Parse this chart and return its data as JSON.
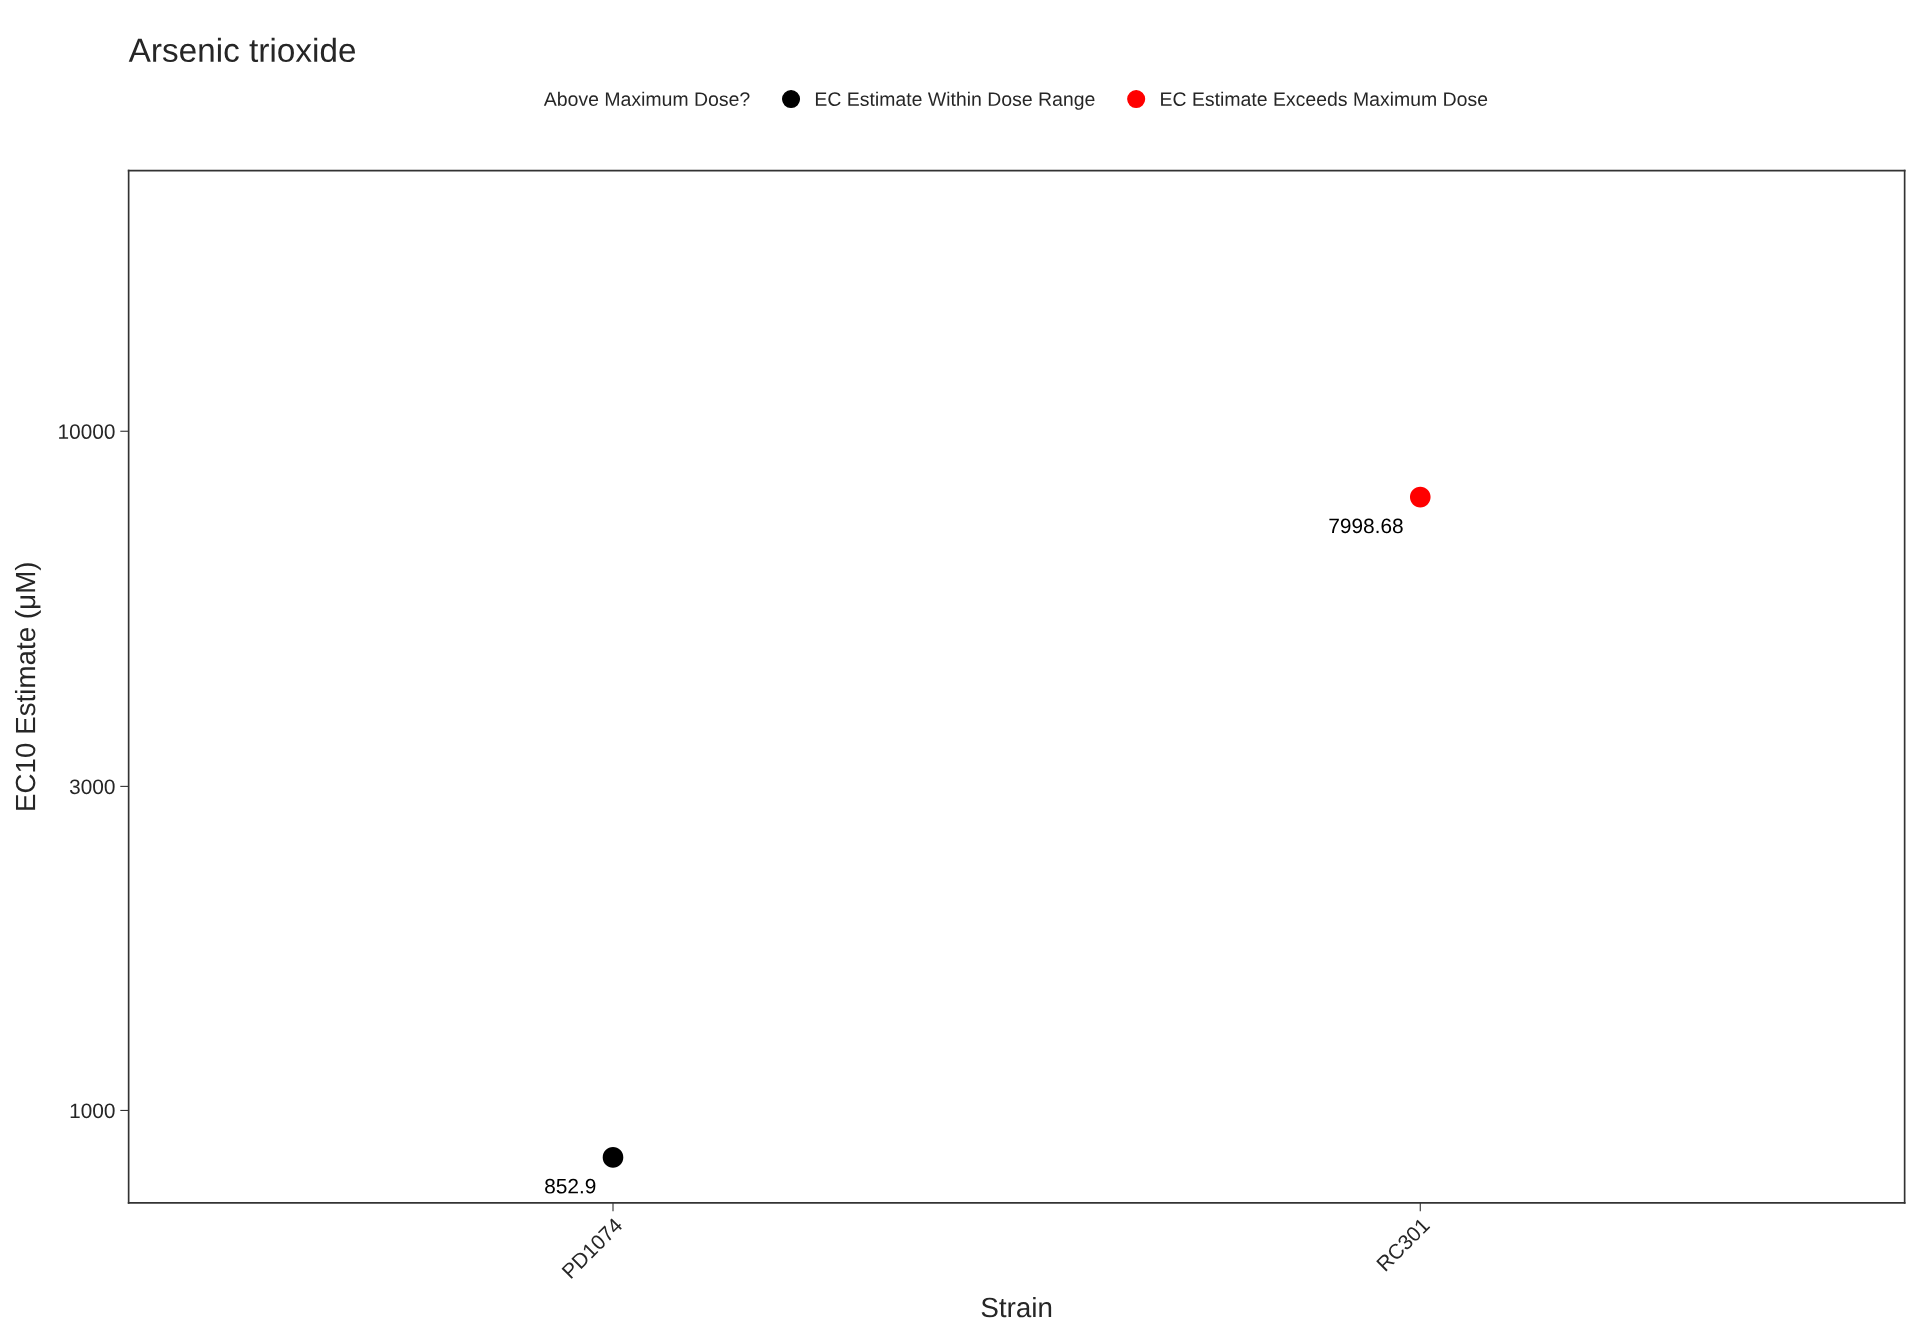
{
  "chart_data": {
    "type": "scatter",
    "title": "Arsenic trioxide",
    "xlabel": "Strain",
    "ylabel": "EC10 Estimate (μM)",
    "legend_title": "Above Maximum Dose?",
    "categories": [
      "PD1074",
      "RC301"
    ],
    "series": [
      {
        "name": "EC Estimate Within Dose Range",
        "color": "#000000",
        "values": [
          852.9,
          null
        ]
      },
      {
        "name": "EC Estimate Exceeds Maximum Dose",
        "color": "#ff0000",
        "values": [
          null,
          7998.68
        ]
      }
    ],
    "log": "y",
    "ylim": [
      731,
      24190
    ],
    "yticks": [
      1000,
      3000,
      10000
    ],
    "grid": false,
    "legend": "top",
    "marker": "circle",
    "data_labels": true
  }
}
